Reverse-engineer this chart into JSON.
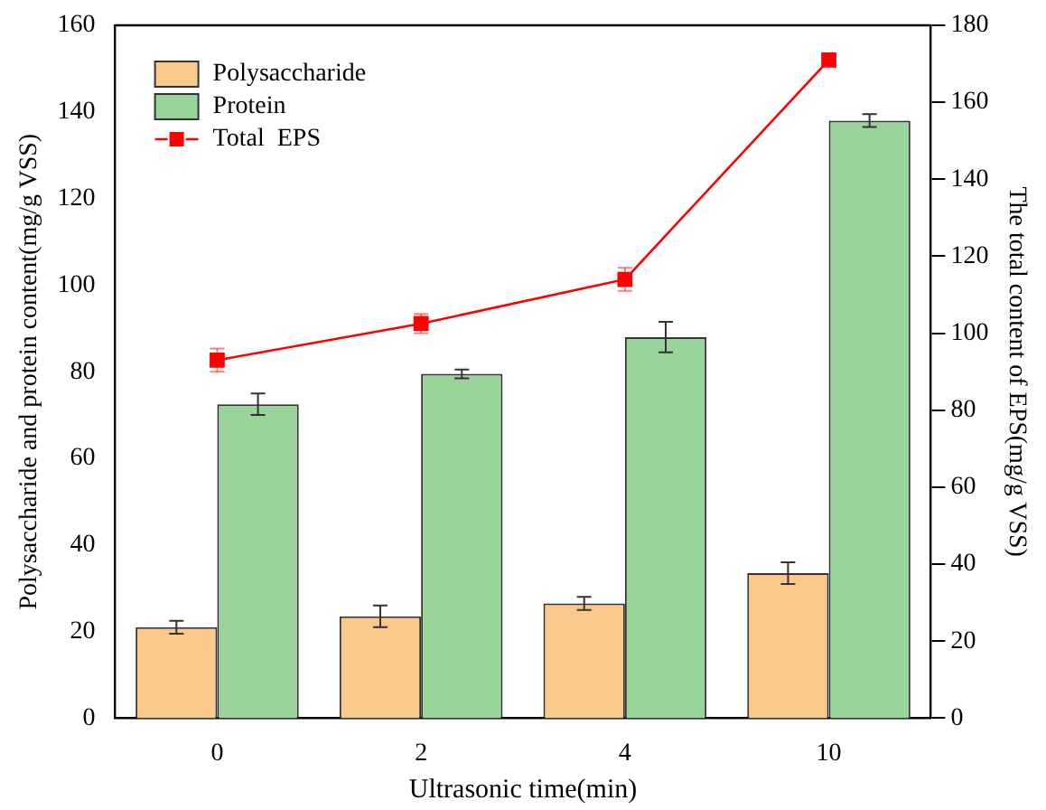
{
  "chart_data": {
    "type": "bar",
    "xlabel": "Ultrasonic time(min)",
    "ylabel": "Polysaccharide and protein content(mg/g VSS)",
    "y2label": "The total content of EPS(mg/g VSS)",
    "categories": [
      "0",
      "2",
      "4",
      "10"
    ],
    "series": [
      {
        "name": "Polysaccharide",
        "color": "#f9c98c",
        "values": [
          21,
          23.5,
          26.5,
          33.5
        ],
        "errors": [
          1.5,
          2.5,
          1.5,
          2.5
        ]
      },
      {
        "name": "Protein",
        "color": "#99d59b",
        "values": [
          72.5,
          79.5,
          88,
          138
        ],
        "errors": [
          2.5,
          1,
          3.5,
          1.5
        ]
      },
      {
        "name": "Total  EPS",
        "type": "line",
        "axis": "y2",
        "color": "#ff0000",
        "marker": "square",
        "values": [
          93,
          102.5,
          114,
          171
        ],
        "errors": [
          3,
          2.5,
          3,
          null
        ]
      }
    ],
    "ylim": [
      0,
      160
    ],
    "yticks": [
      0,
      20,
      40,
      60,
      80,
      100,
      120,
      140,
      160
    ],
    "y2lim": [
      0,
      180
    ],
    "y2ticks": [
      0,
      20,
      40,
      60,
      80,
      100,
      120,
      140,
      160,
      180
    ],
    "legend": "top left",
    "grid": false
  }
}
